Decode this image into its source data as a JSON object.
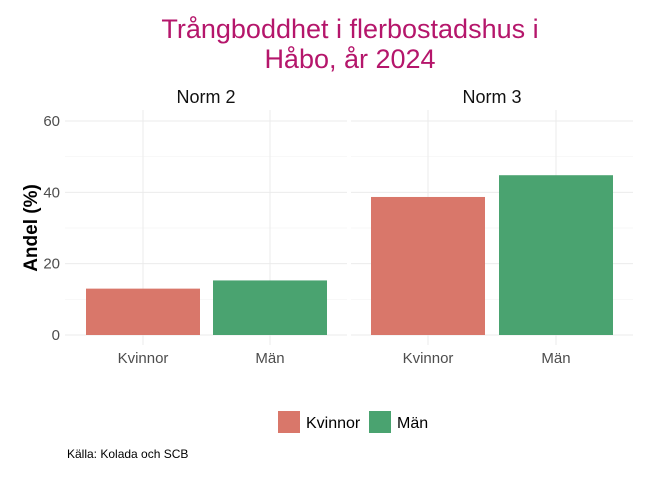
{
  "chart_data": {
    "type": "bar",
    "title_lines": [
      "Trångboddhet i flerbostadshus i",
      "Håbo, år 2024"
    ],
    "ylabel": "Andel (%)",
    "xlabel": "",
    "ylim": [
      0,
      60
    ],
    "yticks": [
      "0",
      "20",
      "40",
      "60"
    ],
    "categories": [
      "Kvinnor",
      "Män"
    ],
    "facets": [
      {
        "name": "Norm 2",
        "values": [
          13,
          15.3
        ]
      },
      {
        "name": "Norm 3",
        "values": [
          38.7,
          44.8
        ]
      }
    ],
    "colors": {
      "Kvinnor": "#d9776a",
      "Män": "#4aa370"
    },
    "legend": {
      "entries": [
        "Kvinnor",
        "Män"
      ],
      "placement": "bottom"
    },
    "grid": true,
    "caption": "Källa: Kolada och SCB"
  }
}
